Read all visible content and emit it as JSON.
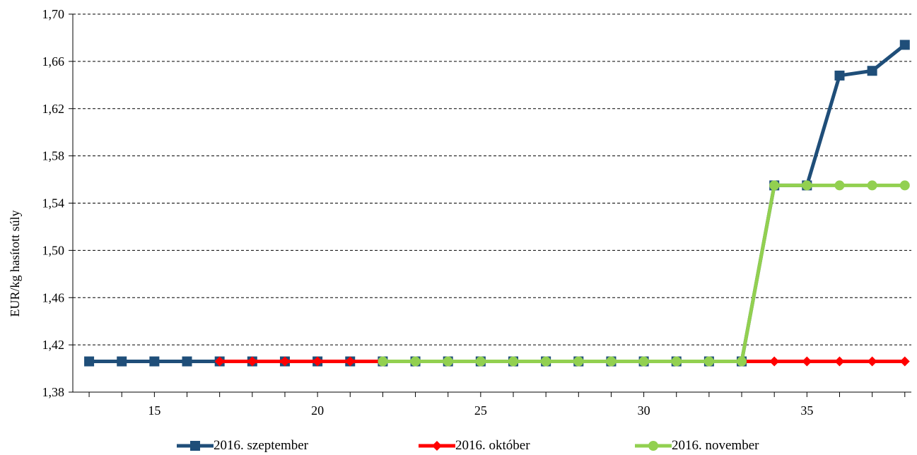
{
  "chart_data": {
    "type": "line",
    "title": "",
    "xlabel": "",
    "ylabel": "EUR/kg hasított súly",
    "xlim": [
      12.5,
      38.2
    ],
    "ylim": [
      1.38,
      1.7
    ],
    "x_ticks": [
      15,
      20,
      25,
      30,
      35
    ],
    "y_ticks": [
      "1,38",
      "1,42",
      "1,46",
      "1,50",
      "1,54",
      "1,58",
      "1,62",
      "1,66",
      "1,70"
    ],
    "y_tick_values": [
      1.38,
      1.42,
      1.46,
      1.5,
      1.54,
      1.58,
      1.62,
      1.66,
      1.7
    ],
    "grid": "horizontal dashed",
    "legend_position": "bottom",
    "series": [
      {
        "name": "2016. szeptember",
        "color": "#1f4e79",
        "marker": "square",
        "x": [
          13,
          14,
          15,
          16,
          17,
          18,
          19,
          20,
          21,
          22,
          23,
          24,
          25,
          26,
          27,
          28,
          29,
          30,
          31,
          32,
          33,
          34,
          35,
          36,
          37,
          38
        ],
        "values": [
          1.406,
          1.406,
          1.406,
          1.406,
          1.406,
          1.406,
          1.406,
          1.406,
          1.406,
          1.406,
          1.406,
          1.406,
          1.406,
          1.406,
          1.406,
          1.406,
          1.406,
          1.406,
          1.406,
          1.406,
          1.406,
          1.555,
          1.555,
          1.648,
          1.652,
          1.674
        ]
      },
      {
        "name": "2016. október",
        "color": "#ff0000",
        "marker": "diamond",
        "x": [
          17,
          18,
          19,
          20,
          21,
          22,
          23,
          24,
          25,
          26,
          27,
          28,
          29,
          30,
          31,
          32,
          33,
          34,
          35,
          36,
          37,
          38
        ],
        "values": [
          1.406,
          1.406,
          1.406,
          1.406,
          1.406,
          1.406,
          1.406,
          1.406,
          1.406,
          1.406,
          1.406,
          1.406,
          1.406,
          1.406,
          1.406,
          1.406,
          1.406,
          1.406,
          1.406,
          1.406,
          1.406,
          1.406
        ]
      },
      {
        "name": "2016. november",
        "color": "#92d050",
        "marker": "circle",
        "x": [
          22,
          23,
          24,
          25,
          26,
          27,
          28,
          29,
          30,
          31,
          32,
          33,
          34,
          35,
          36,
          37,
          38
        ],
        "values": [
          1.406,
          1.406,
          1.406,
          1.406,
          1.406,
          1.406,
          1.406,
          1.406,
          1.406,
          1.406,
          1.406,
          1.406,
          1.555,
          1.555,
          1.555,
          1.555,
          1.555
        ]
      }
    ]
  }
}
